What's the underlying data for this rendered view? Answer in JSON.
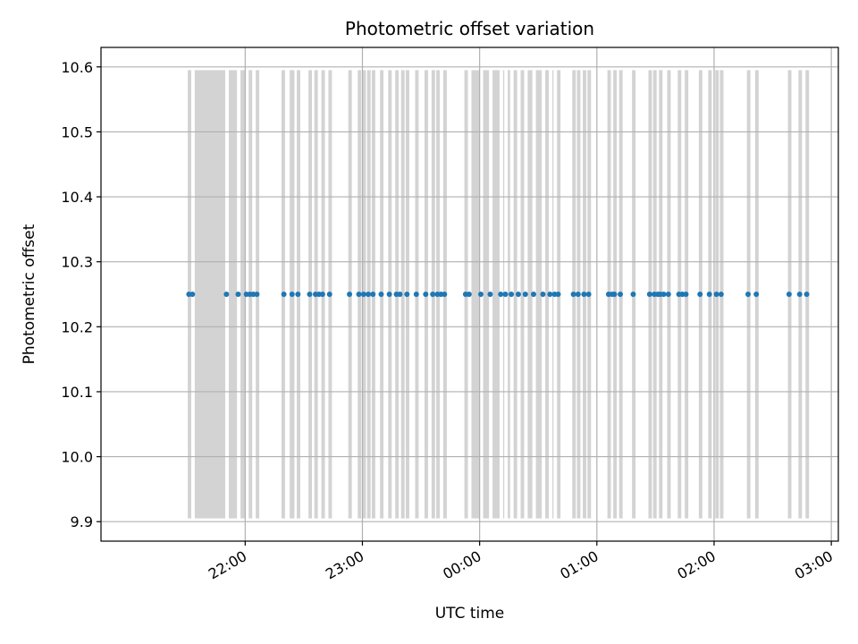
{
  "chart_data": {
    "type": "scatter",
    "title": "Photometric offset variation",
    "xlabel": "UTC time",
    "ylabel": "Photometric offset",
    "ylim": [
      9.87,
      10.63
    ],
    "xlim_hours": [
      20.77,
      27.06
    ],
    "grid": true,
    "x_tick_labels": [
      "22:00",
      "23:00",
      "00:00",
      "01:00",
      "02:00",
      "03:00"
    ],
    "x_tick_hours": [
      22,
      23,
      24,
      25,
      26,
      27
    ],
    "y_ticks": [
      9.9,
      10.0,
      10.1,
      10.2,
      10.3,
      10.4,
      10.5,
      10.6
    ],
    "y_tick_labels": [
      "9.9",
      "10.0",
      "10.1",
      "10.2",
      "10.3",
      "10.4",
      "10.5",
      "10.6"
    ],
    "series": [
      {
        "kind": "points",
        "x_hours": [
          21.52,
          21.55,
          21.84,
          21.94,
          22.01,
          22.04,
          22.07,
          22.1,
          22.33,
          22.4,
          22.45,
          22.55,
          22.6,
          22.63,
          22.66,
          22.72,
          22.89,
          22.97,
          23.01,
          23.05,
          23.09,
          23.16,
          23.23,
          23.29,
          23.32,
          23.38,
          23.46,
          23.54,
          23.6,
          23.64,
          23.67,
          23.7,
          23.88,
          23.91,
          24.01,
          24.09,
          24.18,
          24.22,
          24.27,
          24.33,
          24.39,
          24.46,
          24.54,
          24.6,
          24.64,
          24.67,
          24.8,
          24.84,
          24.89,
          24.93,
          25.1,
          25.13,
          25.15,
          25.2,
          25.31,
          25.45,
          25.49,
          25.52,
          25.54,
          25.57,
          25.61,
          25.7,
          25.73,
          25.76,
          25.88,
          25.96,
          26.02,
          26.06,
          26.29,
          26.36,
          26.64,
          26.73,
          26.79
        ],
        "y_value": 10.25,
        "color": "#1f77b4"
      },
      {
        "kind": "bands",
        "band_hours": [
          21.51,
          21.54,
          21.57,
          21.83,
          21.86,
          21.93,
          21.96,
          22.0,
          22.03,
          22.06,
          22.09,
          22.12,
          22.31,
          22.34,
          22.38,
          22.42,
          22.44,
          22.47,
          22.54,
          22.57,
          22.59,
          22.62,
          22.65,
          22.68,
          22.71,
          22.74,
          22.88,
          22.91,
          22.96,
          22.99,
          23.0,
          23.03,
          23.04,
          23.07,
          23.08,
          23.11,
          23.15,
          23.18,
          23.22,
          23.25,
          23.28,
          23.31,
          23.33,
          23.36,
          23.37,
          23.4,
          23.45,
          23.48,
          23.53,
          23.56,
          23.59,
          23.62,
          23.63,
          23.66,
          23.69,
          23.72,
          23.87,
          23.9,
          23.93,
          24.0,
          24.03,
          24.08,
          24.11,
          24.17,
          24.2,
          24.21,
          24.24,
          24.26,
          24.29,
          24.32,
          24.35,
          24.38,
          24.41,
          24.45,
          24.48,
          24.53,
          24.56,
          24.59,
          24.62,
          24.63,
          24.66,
          24.69,
          24.79,
          24.82,
          24.83,
          24.86,
          24.88,
          24.91,
          24.92,
          24.95,
          25.09,
          25.12,
          25.14,
          25.17,
          25.19,
          25.22,
          25.3,
          25.33,
          25.44,
          25.47,
          25.48,
          25.51,
          25.53,
          25.56,
          25.6,
          25.63,
          25.69,
          25.72,
          25.75,
          25.78,
          25.87,
          25.9,
          25.95,
          25.98,
          26.01,
          26.04,
          26.05,
          26.08,
          26.28,
          26.31,
          26.35,
          26.38,
          26.63,
          26.66,
          26.72,
          26.75,
          26.78,
          26.81
        ],
        "y_range": [
          9.905,
          10.595
        ],
        "color": "#d3d3d3"
      }
    ]
  }
}
